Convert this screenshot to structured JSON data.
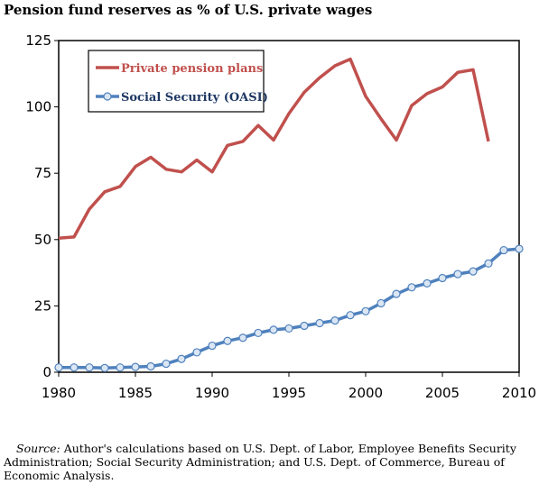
{
  "chart_data": {
    "type": "line",
    "title": "Pension fund reserves as % of U.S. private wages",
    "xlabel": "",
    "ylabel": "",
    "xlim": [
      1980,
      2010
    ],
    "ylim": [
      0,
      125
    ],
    "xticks": [
      "1980",
      "1985",
      "1990",
      "1995",
      "2000",
      "2005",
      "2010"
    ],
    "yticks": [
      "0",
      "25",
      "50",
      "75",
      "100",
      "125"
    ],
    "legend_position": "top-left",
    "grid": false,
    "series": [
      {
        "name": "Private pension plans",
        "color": "#c0504d",
        "marker": "none",
        "x": [
          1980,
          1981,
          1982,
          1983,
          1984,
          1985,
          1986,
          1987,
          1988,
          1989,
          1990,
          1991,
          1992,
          1993,
          1994,
          1995,
          1996,
          1997,
          1998,
          1999,
          2000,
          2001,
          2002,
          2003,
          2004,
          2005,
          2006,
          2007,
          2008
        ],
        "y": [
          50.5,
          51,
          61.5,
          68,
          70,
          77.5,
          81,
          76.5,
          75.5,
          80,
          75.5,
          85.5,
          87,
          93,
          87.5,
          97.5,
          105.5,
          111,
          115.5,
          118,
          104,
          95.5,
          87.5,
          100.5,
          105,
          107.5,
          113,
          114,
          87
        ]
      },
      {
        "name": "Social Security (OASI)",
        "color": "#4f81bd",
        "marker": "circle",
        "x": [
          1980,
          1981,
          1982,
          1983,
          1984,
          1985,
          1986,
          1987,
          1988,
          1989,
          1990,
          1991,
          1992,
          1993,
          1994,
          1995,
          1996,
          1997,
          1998,
          1999,
          2000,
          2001,
          2002,
          2003,
          2004,
          2005,
          2006,
          2007,
          2008,
          2009,
          2010
        ],
        "y": [
          1.8,
          1.8,
          1.8,
          1.6,
          1.8,
          2,
          2.2,
          3.2,
          5,
          7.5,
          10,
          11.8,
          13,
          14.8,
          16,
          16.5,
          17.5,
          18.5,
          19.5,
          21.5,
          23,
          26,
          29.5,
          32,
          33.5,
          35.5,
          37,
          38,
          41,
          46,
          46.5
        ]
      }
    ]
  },
  "source": {
    "label": "Source:",
    "text": "Author's calculations based on U.S. Dept. of Labor, Employee Benefits Security Administration; Social Security Administration; and U.S. Dept. of Commerce, Bureau of Economic Analysis."
  }
}
